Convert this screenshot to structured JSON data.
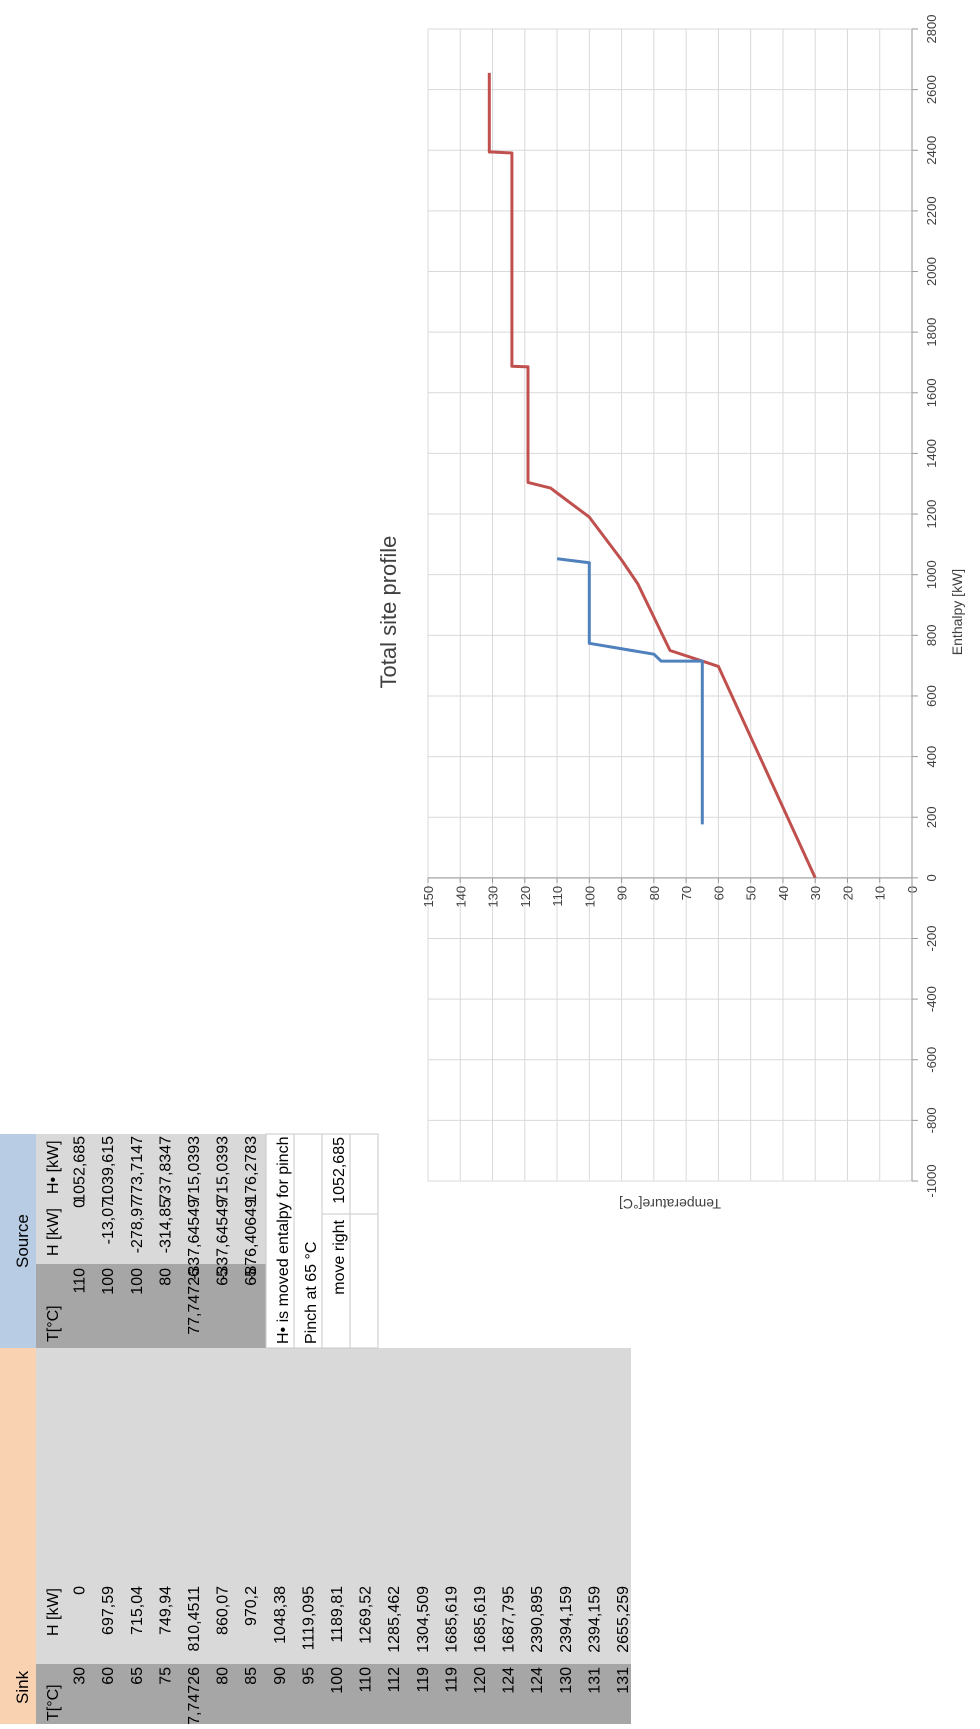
{
  "sheet": {
    "sink": {
      "header": "Sink",
      "col_T": "T[°C]",
      "col_H": "H [kW]",
      "rows": [
        [
          "30",
          "0"
        ],
        [
          "60",
          "697,59"
        ],
        [
          "65",
          "715,04"
        ],
        [
          "75",
          "749,94"
        ],
        [
          "77,74726",
          "810,4511"
        ],
        [
          "80",
          "860,07"
        ],
        [
          "85",
          "970,2"
        ],
        [
          "90",
          "1048,38"
        ],
        [
          "95",
          "1119,095"
        ],
        [
          "100",
          "1189,81"
        ],
        [
          "110",
          "1269,52"
        ],
        [
          "112",
          "1285,462"
        ],
        [
          "119",
          "1304,509"
        ],
        [
          "119",
          "1685,619"
        ],
        [
          "120",
          "1685,619"
        ],
        [
          "124",
          "1687,795"
        ],
        [
          "124",
          "2390,895"
        ],
        [
          "130",
          "2394,159"
        ],
        [
          "131",
          "2394,159"
        ],
        [
          "131",
          "2655,259"
        ]
      ]
    },
    "source": {
      "header": "Source",
      "col_T": "T[°C]",
      "col_H": "H [kW]",
      "col_Hs": "H• [kW]",
      "rows": [
        [
          "110",
          "0",
          "1052,685"
        ],
        [
          "100",
          "-13,07",
          "1039,615"
        ],
        [
          "100",
          "-278,97",
          "773,7147"
        ],
        [
          "80",
          "-314,85",
          "737,8347"
        ],
        [
          "77,74726",
          "-337,64549",
          "715,0393"
        ],
        [
          "65",
          "-337,64549",
          "715,0393"
        ],
        [
          "65",
          "-876,40649",
          "176,2783"
        ]
      ]
    },
    "notes": {
      "moved_note": "H• is moved entalpy for pinch",
      "pinch_note": "Pinch at 65 °C",
      "move_label": "move right",
      "move_value": "1052,685"
    }
  },
  "colors": {
    "sink_header": "#f9d2b2",
    "source_header": "#b8cce4",
    "cell_dark": "#a6a6a6",
    "cell_light": "#d9d9d9",
    "sink_line": "#c0504d",
    "source_line": "#4f81bd",
    "grid": "#d9d9d9"
  },
  "chart_data": {
    "type": "line",
    "title": "Total site profile",
    "xlabel": "Enthalpy [kW]",
    "ylabel": "Temperature[°C]",
    "xlim": [
      -1000,
      2800
    ],
    "ylim": [
      0,
      150
    ],
    "xticks": [
      "-1000",
      "-800",
      "-600",
      "-400",
      "-200",
      "0",
      "200",
      "400",
      "600",
      "800",
      "1000",
      "1200",
      "1400",
      "1600",
      "1800",
      "2000",
      "2200",
      "2400",
      "2600",
      "2800"
    ],
    "yticks": [
      "0",
      "10",
      "20",
      "30",
      "40",
      "50",
      "60",
      "70",
      "80",
      "90",
      "100",
      "110",
      "120",
      "130",
      "140",
      "150"
    ],
    "grid": true,
    "series": [
      {
        "color": "#c0504d",
        "x": [
          0,
          697.59,
          715.04,
          749.94,
          810.4511,
          860.07,
          970.2,
          1048.38,
          1119.095,
          1189.81,
          1269.52,
          1285.462,
          1304.509,
          1685.619,
          1685.619,
          1687.795,
          2390.895,
          2394.159,
          2394.159,
          2655.259
        ],
        "y": [
          30,
          60,
          65,
          75,
          77.74726,
          80,
          85,
          90,
          95,
          100,
          110,
          112,
          119,
          119,
          120,
          124,
          124,
          130,
          131,
          131
        ]
      },
      {
        "color": "#4f81bd",
        "x": [
          1052.685,
          1039.615,
          773.7147,
          737.8347,
          715.0393,
          715.0393,
          176.2783
        ],
        "y": [
          110,
          100,
          100,
          80,
          77.74726,
          65,
          65
        ]
      }
    ]
  }
}
